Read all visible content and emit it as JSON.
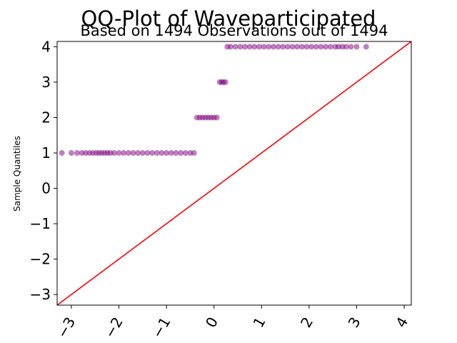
{
  "chart_data": {
    "type": "scatter",
    "title": "QQ-Plot of Waveparticipated",
    "subtitle": "Based on 1494 Observations out of 1494",
    "xlabel": "",
    "ylabel": "Sample Quantiles",
    "xlim": [
      -3.3,
      4.15
    ],
    "ylim": [
      -3.3,
      4.15
    ],
    "grid": false,
    "legend": "none",
    "x_ticks": [
      -3,
      -2,
      -1,
      0,
      1,
      2,
      3,
      4
    ],
    "x_tick_labels": [
      "−3",
      "−2",
      "−1",
      "0",
      "1",
      "2",
      "3",
      "4"
    ],
    "y_ticks": [
      -3,
      -2,
      -1,
      0,
      1,
      2,
      3,
      4
    ],
    "y_tick_labels": [
      "−3",
      "−2",
      "−1",
      "0",
      "1",
      "2",
      "3",
      "4"
    ],
    "point_color": "#800080",
    "line_color": "#ff0000",
    "reference_line": {
      "x": [
        -3.3,
        4.15
      ],
      "y": [
        -3.3,
        4.15
      ]
    },
    "series": [
      {
        "points": [
          [
            -3.2,
            1
          ],
          [
            -3.0,
            1
          ],
          [
            -2.88,
            1
          ],
          [
            -2.78,
            1
          ],
          [
            -2.7,
            1
          ],
          [
            -2.62,
            1
          ],
          [
            -2.55,
            1
          ],
          [
            -2.48,
            1
          ],
          [
            -2.42,
            1
          ],
          [
            -2.36,
            1
          ],
          [
            -2.3,
            1
          ],
          [
            -2.24,
            1
          ],
          [
            -2.18,
            1
          ],
          [
            -2.1,
            1
          ],
          [
            -2.0,
            1
          ],
          [
            -1.9,
            1
          ],
          [
            -1.8,
            1
          ],
          [
            -1.7,
            1
          ],
          [
            -1.6,
            1
          ],
          [
            -1.5,
            1
          ],
          [
            -1.4,
            1
          ],
          [
            -1.3,
            1
          ],
          [
            -1.2,
            1
          ],
          [
            -1.1,
            1
          ],
          [
            -1.0,
            1
          ],
          [
            -0.9,
            1
          ],
          [
            -0.8,
            1
          ],
          [
            -0.7,
            1
          ],
          [
            -0.6,
            1
          ],
          [
            -0.5,
            1
          ],
          [
            -0.42,
            1
          ],
          [
            -0.36,
            2
          ],
          [
            -0.3,
            2
          ],
          [
            -0.24,
            2
          ],
          [
            -0.18,
            2
          ],
          [
            -0.12,
            2
          ],
          [
            -0.06,
            2
          ],
          [
            0.0,
            2
          ],
          [
            0.06,
            2
          ],
          [
            0.12,
            3
          ],
          [
            0.16,
            3
          ],
          [
            0.2,
            3
          ],
          [
            0.24,
            3
          ],
          [
            0.28,
            4
          ],
          [
            0.35,
            4
          ],
          [
            0.45,
            4
          ],
          [
            0.55,
            4
          ],
          [
            0.65,
            4
          ],
          [
            0.75,
            4
          ],
          [
            0.85,
            4
          ],
          [
            0.95,
            4
          ],
          [
            1.05,
            4
          ],
          [
            1.15,
            4
          ],
          [
            1.25,
            4
          ],
          [
            1.35,
            4
          ],
          [
            1.45,
            4
          ],
          [
            1.55,
            4
          ],
          [
            1.65,
            4
          ],
          [
            1.75,
            4
          ],
          [
            1.85,
            4
          ],
          [
            1.95,
            4
          ],
          [
            2.05,
            4
          ],
          [
            2.15,
            4
          ],
          [
            2.25,
            4
          ],
          [
            2.35,
            4
          ],
          [
            2.45,
            4
          ],
          [
            2.55,
            4
          ],
          [
            2.62,
            4
          ],
          [
            2.7,
            4
          ],
          [
            2.78,
            4
          ],
          [
            2.88,
            4
          ],
          [
            3.0,
            4
          ],
          [
            3.2,
            4
          ]
        ]
      }
    ]
  }
}
